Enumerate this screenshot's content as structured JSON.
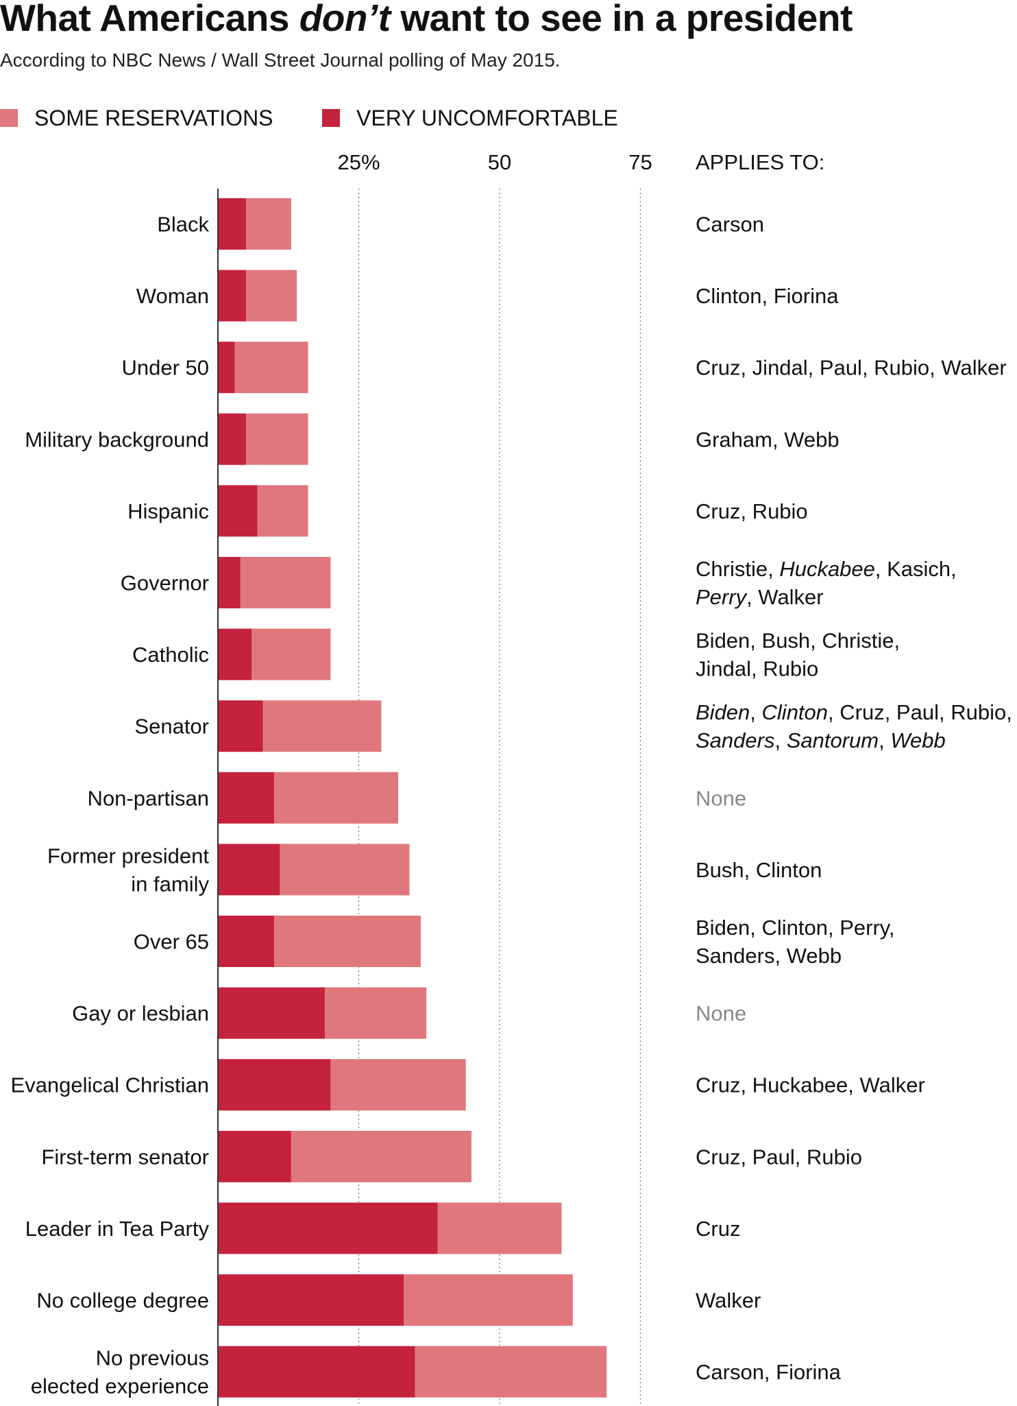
{
  "title": {
    "before": "What Americans ",
    "emphasis": "don’t",
    "after": " want to see in a president"
  },
  "subtitle": "According to NBC News / Wall Street Journal polling of May 2015.",
  "legend": [
    {
      "label": "SOME RESERVATIONS",
      "color": "#E0777C"
    },
    {
      "label": "VERY UNCOMFORTABLE",
      "color": "#C5223D"
    }
  ],
  "colors": {
    "none_text": "#888888"
  },
  "chart_data": {
    "type": "bar",
    "orientation": "horizontal",
    "stacked": true,
    "xlim": [
      0,
      85
    ],
    "ticks": [
      {
        "value": 25,
        "label": "25%"
      },
      {
        "value": 50,
        "label": "50"
      },
      {
        "value": 75,
        "label": "75"
      }
    ],
    "grid": "dotted vertical at ticks",
    "applies_header": "APPLIES TO:",
    "series": [
      {
        "name": "VERY UNCOMFORTABLE",
        "color": "#C5223D",
        "values": [
          5,
          5,
          3,
          5,
          7,
          4,
          6,
          8,
          10,
          11,
          10,
          19,
          20,
          13,
          39,
          33,
          35
        ]
      },
      {
        "name": "SOME RESERVATIONS",
        "color": "#E0777C",
        "values": [
          8,
          9,
          13,
          11,
          9,
          16,
          14,
          21,
          22,
          23,
          26,
          18,
          24,
          32,
          22,
          30,
          34
        ]
      }
    ],
    "categories": [
      [
        "Black"
      ],
      [
        "Woman"
      ],
      [
        "Under 50"
      ],
      [
        "Military background"
      ],
      [
        "Hispanic"
      ],
      [
        "Governor"
      ],
      [
        "Catholic"
      ],
      [
        "Senator"
      ],
      [
        "Non-partisan"
      ],
      [
        "Former president",
        "in family"
      ],
      [
        "Over 65"
      ],
      [
        "Gay or lesbian"
      ],
      [
        "Evangelical Christian"
      ],
      [
        "First-term senator"
      ],
      [
        "Leader in Tea Party"
      ],
      [
        "No college degree"
      ],
      [
        "No previous",
        "elected experience"
      ]
    ],
    "applies_to": [
      [
        [
          {
            "t": "Carson"
          }
        ]
      ],
      [
        [
          {
            "t": "Clinton, Fiorina"
          }
        ]
      ],
      [
        [
          {
            "t": "Cruz, Jindal, Paul, Rubio, Walker"
          }
        ]
      ],
      [
        [
          {
            "t": "Graham, Webb"
          }
        ]
      ],
      [
        [
          {
            "t": "Cruz, Rubio"
          }
        ]
      ],
      [
        [
          {
            "t": "Christie, "
          },
          {
            "t": "Huckabee",
            "i": true
          },
          {
            "t": ", Kasich,"
          }
        ],
        [
          {
            "t": "Perry",
            "i": true
          },
          {
            "t": ", Walker"
          }
        ]
      ],
      [
        [
          {
            "t": "Biden, Bush, Christie,"
          }
        ],
        [
          {
            "t": "Jindal, Rubio"
          }
        ]
      ],
      [
        [
          {
            "t": "Biden",
            "i": true
          },
          {
            "t": ", "
          },
          {
            "t": "Clinton",
            "i": true
          },
          {
            "t": ", Cruz, Paul, Rubio,"
          }
        ],
        [
          {
            "t": "Sanders",
            "i": true
          },
          {
            "t": ", "
          },
          {
            "t": "Santorum",
            "i": true
          },
          {
            "t": ", "
          },
          {
            "t": "Webb",
            "i": true
          }
        ]
      ],
      [
        [
          {
            "t": "None",
            "none": true
          }
        ]
      ],
      [
        [
          {
            "t": "Bush, Clinton"
          }
        ]
      ],
      [
        [
          {
            "t": "Biden, Clinton, Perry,"
          }
        ],
        [
          {
            "t": "Sanders, Webb"
          }
        ]
      ],
      [
        [
          {
            "t": "None",
            "none": true
          }
        ]
      ],
      [
        [
          {
            "t": "Cruz, Huckabee, Walker"
          }
        ]
      ],
      [
        [
          {
            "t": "Cruz, Paul, Rubio"
          }
        ]
      ],
      [
        [
          {
            "t": "Cruz"
          }
        ]
      ],
      [
        [
          {
            "t": "Walker"
          }
        ]
      ],
      [
        [
          {
            "t": "Carson, Fiorina"
          }
        ]
      ]
    ]
  }
}
